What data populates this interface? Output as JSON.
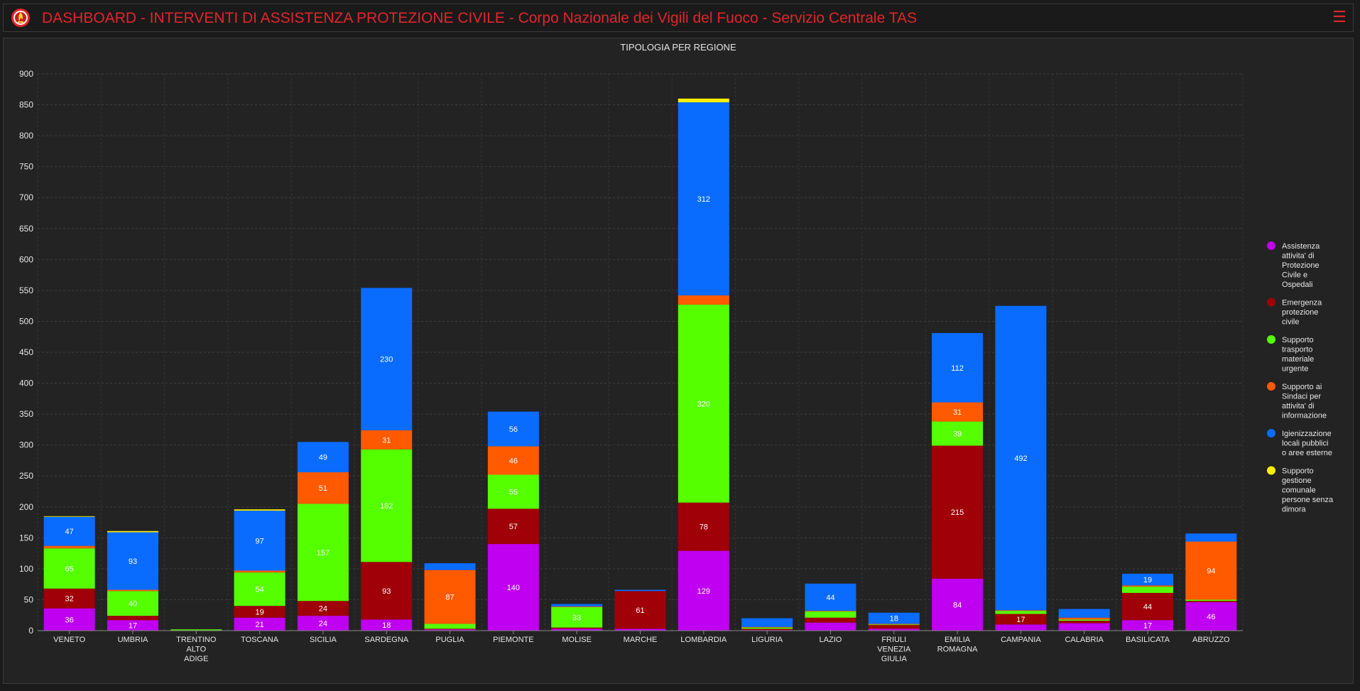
{
  "header": {
    "title": "DASHBOARD - INTERVENTI DI ASSISTENZA PROTEZIONE CIVILE - Corpo Nazionale dei Vigili del Fuoco - Servizio Centrale TAS",
    "logo_icon": "fire-brigade-emblem-icon",
    "menu_icon": "hamburger-menu-icon",
    "accent_color": "#e3242b"
  },
  "chart_data": {
    "type": "bar",
    "stacked": true,
    "title": "TIPOLOGIA PER REGIONE",
    "xlabel": "",
    "ylabel": "",
    "ylim": [
      0,
      900
    ],
    "yticks": [
      0,
      50,
      100,
      150,
      200,
      250,
      300,
      350,
      400,
      450,
      500,
      550,
      600,
      650,
      700,
      750,
      800,
      850,
      900
    ],
    "grid": true,
    "legend_position": "right",
    "categories": [
      "VENETO",
      "UMBRIA",
      "TRENTINO ALTO ADIGE",
      "TOSCANA",
      "SICILIA",
      "SARDEGNA",
      "PUGLIA",
      "PIEMONTE",
      "MOLISE",
      "MARCHE",
      "LOMBARDIA",
      "LIGURIA",
      "LAZIO",
      "FRIULI VENEZIA GIULIA",
      "EMILIA ROMAGNA",
      "CAMPANIA",
      "CALABRIA",
      "BASILICATA",
      "ABRUZZO"
    ],
    "series": [
      {
        "name": "Assistenza attivita' di Protezione Civile e Ospedali",
        "color": "#c000f0",
        "values": [
          36,
          17,
          0,
          21,
          24,
          18,
          2,
          140,
          3,
          3,
          129,
          1,
          13,
          3,
          84,
          10,
          12,
          17,
          46
        ]
      },
      {
        "name": "Emergenza protezione civile",
        "color": "#a00008",
        "values": [
          32,
          7,
          0,
          19,
          24,
          93,
          1,
          57,
          2,
          61,
          78,
          2,
          8,
          6,
          215,
          17,
          4,
          44,
          2
        ]
      },
      {
        "name": "Supporto trasporto materiale urgente",
        "color": "#55ff00",
        "values": [
          65,
          40,
          2,
          54,
          157,
          182,
          8,
          55,
          33,
          0,
          320,
          2,
          10,
          1,
          39,
          5,
          2,
          10,
          2
        ]
      },
      {
        "name": "Supporto ai Sindaci per attivita' di informazione",
        "color": "#ff5a00",
        "values": [
          4,
          2,
          0,
          3,
          51,
          31,
          87,
          46,
          1,
          0,
          15,
          1,
          1,
          1,
          31,
          1,
          3,
          2,
          94
        ]
      },
      {
        "name": "Igienizzazione locali pubblici o aree esterne",
        "color": "#0a6cff",
        "values": [
          47,
          93,
          0,
          97,
          49,
          230,
          11,
          56,
          4,
          2,
          312,
          14,
          44,
          18,
          112,
          492,
          14,
          19,
          13
        ]
      },
      {
        "name": "Supporto gestione comunale persone senza dimora",
        "color": "#ffee00",
        "values": [
          1,
          2,
          0,
          2,
          0,
          0,
          0,
          0,
          0,
          0,
          6,
          0,
          0,
          0,
          0,
          0,
          0,
          0,
          0
        ]
      }
    ],
    "data_labels": [
      {
        "series": 0,
        "values": [
          "36",
          "17",
          "",
          "21",
          "24",
          "18",
          "",
          "140",
          "",
          "",
          "129",
          "",
          "",
          "",
          "84",
          "",
          "",
          "17",
          "46"
        ]
      },
      {
        "series": 1,
        "values": [
          "32",
          "",
          "",
          "19",
          "24",
          "93",
          "",
          "57",
          "",
          "61",
          "78",
          "",
          "",
          "",
          "215",
          "17",
          "",
          "44",
          ""
        ]
      },
      {
        "series": 2,
        "values": [
          "65",
          "40",
          "",
          "54",
          "157",
          "182",
          "",
          "55",
          "33",
          "",
          "320",
          "",
          "",
          "",
          "39",
          "",
          "",
          "",
          ""
        ]
      },
      {
        "series": 3,
        "values": [
          "",
          "",
          "",
          "",
          "51",
          "31",
          "87",
          "46",
          "",
          "",
          "",
          "",
          "",
          "",
          "31",
          "",
          "",
          "",
          "94"
        ]
      },
      {
        "series": 4,
        "values": [
          "47",
          "93",
          "",
          "97",
          "49",
          "230",
          "",
          "56",
          "",
          "",
          "312",
          "",
          "44",
          "18",
          "112",
          "492",
          "",
          "19",
          ""
        ]
      },
      {
        "series": 5,
        "values": [
          "",
          "",
          "",
          "",
          "",
          "",
          "",
          "",
          "",
          "",
          "",
          "",
          "",
          "",
          "",
          "",
          "",
          "",
          ""
        ]
      }
    ],
    "legend_lines": [
      [
        "Assistenza",
        "attivita' di",
        "Protezione",
        "Civile e",
        "Ospedali"
      ],
      [
        "Emergenza",
        "protezione",
        "civile"
      ],
      [
        "Supporto",
        "trasporto",
        "materiale",
        "urgente"
      ],
      [
        "Supporto ai",
        "Sindaci per",
        "attivita' di",
        "informazione"
      ],
      [
        "Igienizzazione",
        "locali pubblici",
        "o aree esterne"
      ],
      [
        "Supporto",
        "gestione",
        "comunale",
        "persone senza",
        "dimora"
      ]
    ],
    "category_lines": [
      [
        "VENETO"
      ],
      [
        "UMBRIA"
      ],
      [
        "TRENTINO",
        "ALTO",
        "ADIGE"
      ],
      [
        "TOSCANA"
      ],
      [
        "SICILIA"
      ],
      [
        "SARDEGNA"
      ],
      [
        "PUGLIA"
      ],
      [
        "PIEMONTE"
      ],
      [
        "MOLISE"
      ],
      [
        "MARCHE"
      ],
      [
        "LOMBARDIA"
      ],
      [
        "LIGURIA"
      ],
      [
        "LAZIO"
      ],
      [
        "FRIULI",
        "VENEZIA",
        "GIULIA"
      ],
      [
        "EMILIA",
        "ROMAGNA"
      ],
      [
        "CAMPANIA"
      ],
      [
        "CALABRIA"
      ],
      [
        "BASILICATA"
      ],
      [
        "ABRUZZO"
      ]
    ]
  }
}
